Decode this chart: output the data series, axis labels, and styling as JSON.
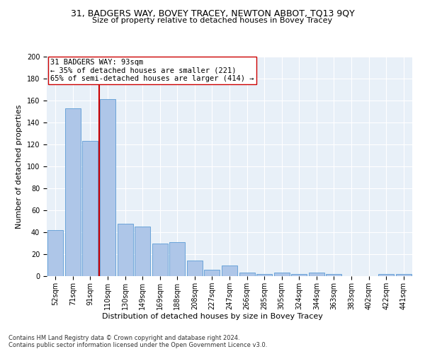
{
  "title1": "31, BADGERS WAY, BOVEY TRACEY, NEWTON ABBOT, TQ13 9QY",
  "title2": "Size of property relative to detached houses in Bovey Tracey",
  "xlabel": "Distribution of detached houses by size in Bovey Tracey",
  "ylabel": "Number of detached properties",
  "categories": [
    "52sqm",
    "71sqm",
    "91sqm",
    "110sqm",
    "130sqm",
    "149sqm",
    "169sqm",
    "188sqm",
    "208sqm",
    "227sqm",
    "247sqm",
    "266sqm",
    "285sqm",
    "305sqm",
    "324sqm",
    "344sqm",
    "363sqm",
    "383sqm",
    "402sqm",
    "422sqm",
    "441sqm"
  ],
  "values": [
    42,
    153,
    123,
    161,
    48,
    45,
    30,
    31,
    14,
    6,
    10,
    3,
    2,
    3,
    2,
    3,
    2,
    0,
    0,
    2,
    2
  ],
  "bar_color": "#aec6e8",
  "bar_edge_color": "#5b9bd5",
  "annotation_box_text1": "31 BADGERS WAY: 93sqm",
  "annotation_box_text2": "← 35% of detached houses are smaller (221)",
  "annotation_box_text3": "65% of semi-detached houses are larger (414) →",
  "vline_color": "#cc0000",
  "vline_x": 2.5,
  "ylim": [
    0,
    200
  ],
  "yticks": [
    0,
    20,
    40,
    60,
    80,
    100,
    120,
    140,
    160,
    180,
    200
  ],
  "background_color": "#e8f0f8",
  "footer1": "Contains HM Land Registry data © Crown copyright and database right 2024.",
  "footer2": "Contains public sector information licensed under the Open Government Licence v3.0.",
  "title_fontsize": 9,
  "subtitle_fontsize": 8,
  "xlabel_fontsize": 8,
  "ylabel_fontsize": 8,
  "tick_fontsize": 7,
  "annot_fontsize": 7.5,
  "footer_fontsize": 6
}
